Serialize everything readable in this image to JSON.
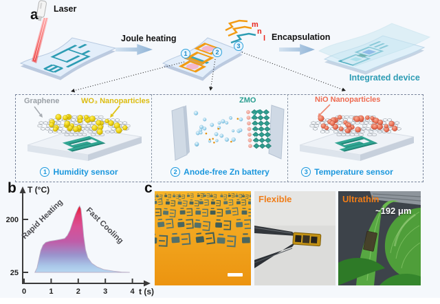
{
  "panel_a": {
    "label": "a",
    "laser_label": "Laser",
    "step1_label": "Joule heating",
    "step2_label": "Encapsulation",
    "trace_labels": [
      "m",
      "n",
      "l"
    ],
    "device_markers": [
      "1",
      "2",
      "3"
    ],
    "integrated_label": "Integrated device"
  },
  "sensor_box": {
    "panels": [
      {
        "number": "1",
        "name": "Humidity sensor",
        "annotations": [
          {
            "text": "Graphene",
            "color": "#9aa0a6"
          },
          {
            "text": "WO₃ Nanoparticles",
            "color": "#e0c419"
          }
        ]
      },
      {
        "number": "2",
        "name": "Anode-free Zn battery",
        "annotations": [
          {
            "text": "ZMO",
            "color": "#2a9d8f"
          }
        ]
      },
      {
        "number": "3",
        "name": "Temperature sensor",
        "annotations": [
          {
            "text": "NiO Nanoparticles",
            "color": "#ee6a50"
          }
        ]
      }
    ]
  },
  "panel_b": {
    "label": "b"
  },
  "panel_c": {
    "label": "c",
    "photos": [
      {
        "name": "sensor-array-photo",
        "overlay": ""
      },
      {
        "name": "flexible-photo",
        "overlay": "Flexible"
      },
      {
        "name": "ultrathin-photo",
        "overlay": "Ultrathin",
        "measurement": "~192 μm"
      }
    ]
  },
  "chart_data": {
    "type": "area",
    "title": "",
    "xlabel": "t (s)",
    "ylabel": "T (°C)",
    "xlim": [
      0,
      4.6
    ],
    "ylim": [
      -10,
      300
    ],
    "xticks": [
      0,
      1,
      2,
      3,
      4
    ],
    "yticks": [
      25,
      200
    ],
    "baseline": 25,
    "grid": false,
    "annotations": [
      {
        "text": "Rapid Heating",
        "rotation": -44
      },
      {
        "text": "Fast Cooling",
        "rotation": 44
      }
    ],
    "series": [
      {
        "name": "temperature-profile",
        "points": [
          [
            0.4,
            25
          ],
          [
            0.48,
            40
          ],
          [
            0.55,
            70
          ],
          [
            0.62,
            98
          ],
          [
            0.7,
            115
          ],
          [
            0.8,
            124
          ],
          [
            0.95,
            128
          ],
          [
            1.15,
            131
          ],
          [
            1.35,
            134
          ],
          [
            1.5,
            137
          ],
          [
            1.6,
            147
          ],
          [
            1.7,
            165
          ],
          [
            1.8,
            192
          ],
          [
            1.9,
            218
          ],
          [
            2.0,
            238
          ],
          [
            2.05,
            245
          ],
          [
            2.1,
            235
          ],
          [
            2.15,
            196
          ],
          [
            2.2,
            145
          ],
          [
            2.27,
            100
          ],
          [
            2.35,
            74
          ],
          [
            2.5,
            55
          ],
          [
            2.7,
            43
          ],
          [
            2.95,
            34
          ],
          [
            3.3,
            29
          ],
          [
            3.6,
            26
          ],
          [
            3.9,
            25
          ]
        ]
      }
    ],
    "gradient": [
      "#e71a2b",
      "#d84b92",
      "#c45fa6",
      "#a9c6e8"
    ]
  },
  "colors": {
    "accent_teal": "#2d9cb4",
    "accent_orange": "#f29b13",
    "label_blue": "#1b97dd",
    "label_red": "#e8251c",
    "photo_label_orange": "#f07d18"
  }
}
